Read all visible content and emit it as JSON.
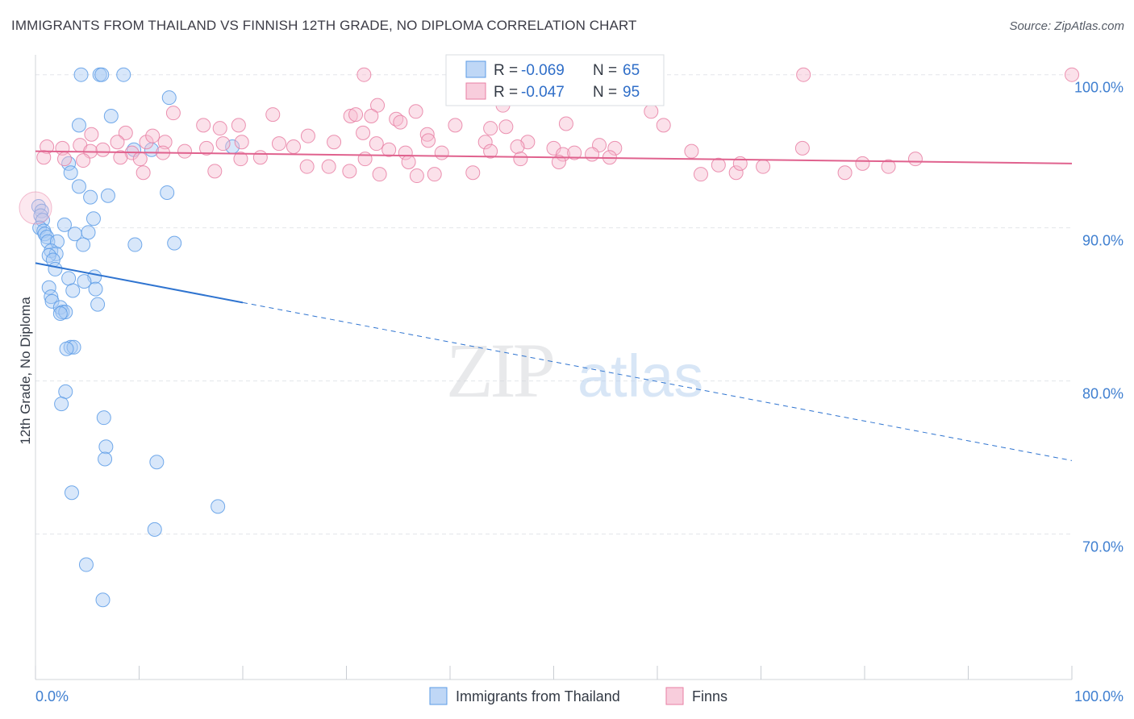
{
  "header": {
    "title": "IMMIGRANTS FROM THAILAND VS FINNISH 12TH GRADE, NO DIPLOMA CORRELATION CHART",
    "source": "Source: ZipAtlas.com"
  },
  "watermark": {
    "zip": "ZIP",
    "atlas": "atlas"
  },
  "colors": {
    "blue": "#5b9be6",
    "blue_fill": "#a9c9f3",
    "blue_line": "#2f74d0",
    "pink": "#e87fa3",
    "pink_fill": "#f6bcd0",
    "pink_line": "#e0628e",
    "tick_text": "#3f7fd0",
    "grid": "#e3e6ea"
  },
  "legend_box": {
    "rows": [
      {
        "r_label": "R =",
        "r_value": "-0.069",
        "n_label": "N =",
        "n_value": "65"
      },
      {
        "r_label": "R =",
        "r_value": "-0.047",
        "n_label": "N =",
        "n_value": "95"
      }
    ]
  },
  "bottom_legend": [
    "Immigrants from Thailand",
    "Finns"
  ],
  "chart_data": {
    "type": "scatter",
    "xlabel": "",
    "ylabel": "12th Grade, No Diploma",
    "xlim": [
      0,
      100
    ],
    "ylim": [
      60.5,
      101.3
    ],
    "x_tick_labels": [
      "0.0%",
      "100.0%"
    ],
    "y_ticks": [
      70,
      80,
      90,
      100
    ],
    "y_tick_labels": [
      "70.0%",
      "80.0%",
      "90.0%",
      "100.0%"
    ],
    "grid": true,
    "legend_position": "top-center",
    "series": [
      {
        "name": "Immigrants from Thailand",
        "r": -0.069,
        "n": 65,
        "trend": {
          "x0": 0,
          "y0": 87.7,
          "x1": 100,
          "y1": 74.8,
          "solid_until_x": 20
        },
        "points": [
          [
            4.4,
            100
          ],
          [
            6.2,
            100
          ],
          [
            6.4,
            100
          ],
          [
            8.5,
            100
          ],
          [
            12.9,
            98.5
          ],
          [
            7.3,
            97.3
          ],
          [
            4.2,
            96.7
          ],
          [
            9.5,
            95.1
          ],
          [
            11.2,
            95.1
          ],
          [
            19.0,
            95.3
          ],
          [
            3.2,
            94.2
          ],
          [
            3.4,
            93.6
          ],
          [
            4.2,
            92.7
          ],
          [
            5.3,
            92.0
          ],
          [
            7.0,
            92.1
          ],
          [
            12.7,
            92.3
          ],
          [
            0.3,
            91.4
          ],
          [
            0.6,
            91.1
          ],
          [
            0.5,
            90.8
          ],
          [
            0.7,
            90.5
          ],
          [
            5.6,
            90.6
          ],
          [
            2.8,
            90.2
          ],
          [
            0.4,
            90.0
          ],
          [
            0.8,
            89.8
          ],
          [
            0.9,
            89.6
          ],
          [
            1.1,
            89.4
          ],
          [
            3.8,
            89.6
          ],
          [
            5.1,
            89.7
          ],
          [
            1.2,
            89.1
          ],
          [
            2.1,
            89.1
          ],
          [
            4.6,
            88.9
          ],
          [
            9.6,
            88.9
          ],
          [
            13.4,
            89.0
          ],
          [
            1.5,
            88.5
          ],
          [
            2.0,
            88.3
          ],
          [
            1.3,
            88.2
          ],
          [
            1.7,
            87.9
          ],
          [
            1.9,
            87.3
          ],
          [
            3.2,
            86.7
          ],
          [
            5.7,
            86.8
          ],
          [
            1.3,
            86.1
          ],
          [
            3.6,
            85.9
          ],
          [
            5.8,
            86.0
          ],
          [
            4.7,
            86.5
          ],
          [
            1.5,
            85.5
          ],
          [
            1.6,
            85.2
          ],
          [
            6.0,
            85.0
          ],
          [
            2.4,
            84.8
          ],
          [
            2.6,
            84.5
          ],
          [
            2.9,
            84.5
          ],
          [
            2.4,
            84.4
          ],
          [
            3.4,
            82.2
          ],
          [
            3.7,
            82.2
          ],
          [
            3.0,
            82.1
          ],
          [
            2.9,
            79.3
          ],
          [
            2.5,
            78.5
          ],
          [
            6.6,
            77.6
          ],
          [
            6.8,
            75.7
          ],
          [
            6.7,
            74.9
          ],
          [
            11.7,
            74.7
          ],
          [
            3.5,
            72.7
          ],
          [
            17.6,
            71.8
          ],
          [
            11.5,
            70.3
          ],
          [
            4.9,
            68.0
          ],
          [
            6.5,
            65.7
          ]
        ]
      },
      {
        "name": "Finns",
        "r": -0.047,
        "n": 95,
        "trend": {
          "x0": 0,
          "y0": 95.0,
          "x1": 100,
          "y1": 94.2
        },
        "points": [
          [
            31.7,
            100
          ],
          [
            51.4,
            100
          ],
          [
            58.5,
            100
          ],
          [
            74.1,
            100
          ],
          [
            100,
            100
          ],
          [
            55.7,
            98.8
          ],
          [
            33,
            98
          ],
          [
            45.1,
            98
          ],
          [
            13.3,
            97.5
          ],
          [
            22.9,
            97.4
          ],
          [
            30.4,
            97.3
          ],
          [
            30.9,
            97.4
          ],
          [
            32.4,
            97.3
          ],
          [
            34.8,
            97.1
          ],
          [
            36.7,
            97.6
          ],
          [
            59.4,
            97.6
          ],
          [
            16.2,
            96.7
          ],
          [
            17.8,
            96.5
          ],
          [
            19.6,
            96.7
          ],
          [
            31.6,
            96.2
          ],
          [
            35.2,
            96.9
          ],
          [
            40.5,
            96.7
          ],
          [
            43.9,
            96.5
          ],
          [
            45.4,
            96.6
          ],
          [
            51.2,
            96.8
          ],
          [
            60.6,
            96.7
          ],
          [
            5.4,
            96.1
          ],
          [
            8.7,
            96.2
          ],
          [
            10.7,
            95.6
          ],
          [
            11.3,
            96.0
          ],
          [
            26.3,
            96.0
          ],
          [
            28.8,
            95.6
          ],
          [
            32.9,
            95.5
          ],
          [
            37.8,
            96.1
          ],
          [
            37.9,
            95.7
          ],
          [
            43.4,
            95.6
          ],
          [
            47.5,
            95.6
          ],
          [
            54.4,
            95.4
          ],
          [
            1.1,
            95.3
          ],
          [
            2.6,
            95.2
          ],
          [
            4.3,
            95.4
          ],
          [
            5.3,
            95.0
          ],
          [
            6.5,
            95.1
          ],
          [
            7.9,
            95.6
          ],
          [
            9.3,
            94.9
          ],
          [
            12.5,
            95.6
          ],
          [
            14.4,
            95.0
          ],
          [
            16.5,
            95.2
          ],
          [
            18.1,
            95.5
          ],
          [
            19.9,
            95.6
          ],
          [
            23.5,
            95.5
          ],
          [
            24.9,
            95.3
          ],
          [
            34.1,
            95.1
          ],
          [
            35.7,
            94.9
          ],
          [
            39.2,
            94.9
          ],
          [
            43.9,
            95.0
          ],
          [
            46.5,
            95.3
          ],
          [
            50.0,
            95.2
          ],
          [
            50.9,
            94.8
          ],
          [
            52.0,
            94.9
          ],
          [
            53.7,
            94.8
          ],
          [
            55.9,
            95.2
          ],
          [
            63.3,
            95.0
          ],
          [
            74.0,
            95.2
          ],
          [
            0.8,
            94.6
          ],
          [
            2.8,
            94.5
          ],
          [
            4.6,
            94.4
          ],
          [
            8.2,
            94.6
          ],
          [
            10.1,
            94.5
          ],
          [
            12.3,
            94.9
          ],
          [
            19.8,
            94.5
          ],
          [
            21.7,
            94.6
          ],
          [
            26.2,
            94.0
          ],
          [
            28.3,
            94.0
          ],
          [
            31.8,
            94.5
          ],
          [
            36.0,
            94.3
          ],
          [
            46.8,
            94.5
          ],
          [
            50.5,
            94.3
          ],
          [
            55.4,
            94.6
          ],
          [
            65.9,
            94.1
          ],
          [
            10.4,
            93.6
          ],
          [
            17.3,
            93.7
          ],
          [
            30.3,
            93.7
          ],
          [
            33.2,
            93.5
          ],
          [
            36.8,
            93.4
          ],
          [
            38.5,
            93.5
          ],
          [
            42.2,
            93.6
          ],
          [
            64.2,
            93.5
          ],
          [
            67.6,
            93.6
          ],
          [
            68.0,
            94.2
          ],
          [
            70.2,
            94.0
          ],
          [
            78.1,
            93.6
          ],
          [
            79.8,
            94.2
          ],
          [
            82.3,
            94.0
          ],
          [
            84.9,
            94.5
          ]
        ]
      }
    ]
  }
}
